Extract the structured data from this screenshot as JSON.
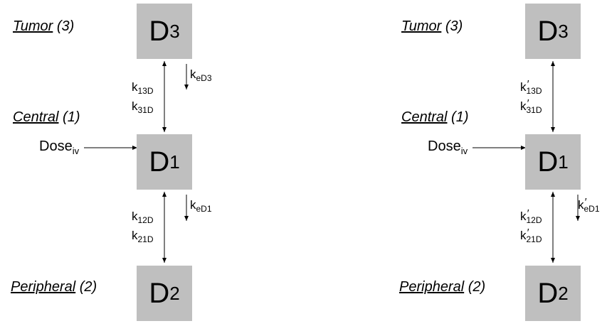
{
  "compartments": {
    "tumor": {
      "name": "Tumor",
      "number": "(3)",
      "symbol": "D",
      "index": "3"
    },
    "central": {
      "name": "Central",
      "number": "(1)",
      "symbol": "D",
      "index": "1"
    },
    "peripheral": {
      "name": "Peripheral",
      "number": "(2)",
      "symbol": "D",
      "index": "2"
    }
  },
  "dose": {
    "main": "Dose",
    "sub": "iv"
  },
  "left_rates": {
    "k_base": "k",
    "k13": "13D",
    "k31": "31D",
    "keD3": "eD3",
    "k12": "12D",
    "k21": "21D",
    "keD1": "eD1"
  },
  "right_rates": {
    "k_base": "k",
    "k13": "13D",
    "k31": "31D",
    "k12": "12D",
    "k21": "21D",
    "keD1": "eD1"
  }
}
